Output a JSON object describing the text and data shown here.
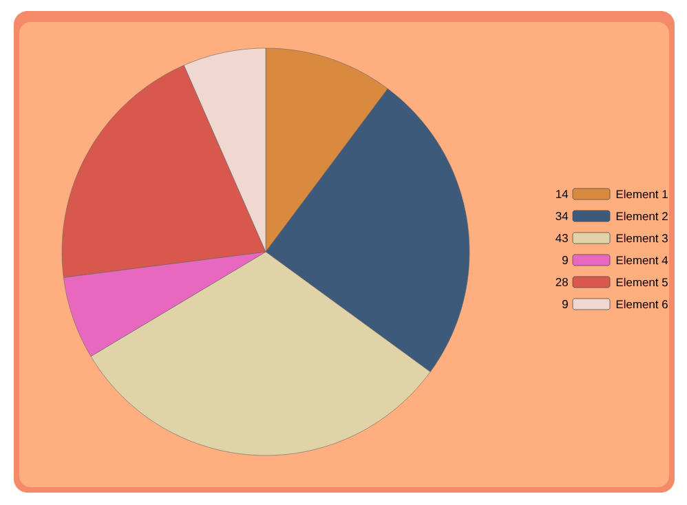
{
  "chart_data": {
    "type": "pie",
    "categories": [
      "Element 1",
      "Element 2",
      "Element 3",
      "Element 4",
      "Element 5",
      "Element 6"
    ],
    "values": [
      14,
      34,
      43,
      9,
      28,
      9
    ],
    "colors": [
      "#d98a3f",
      "#3e5a7a",
      "#e0d3a8",
      "#e868c0",
      "#d8584e",
      "#f0d8d0"
    ],
    "value_labels": [
      "14",
      "34",
      "43",
      "9",
      "28",
      "9"
    ],
    "legend": "right"
  }
}
